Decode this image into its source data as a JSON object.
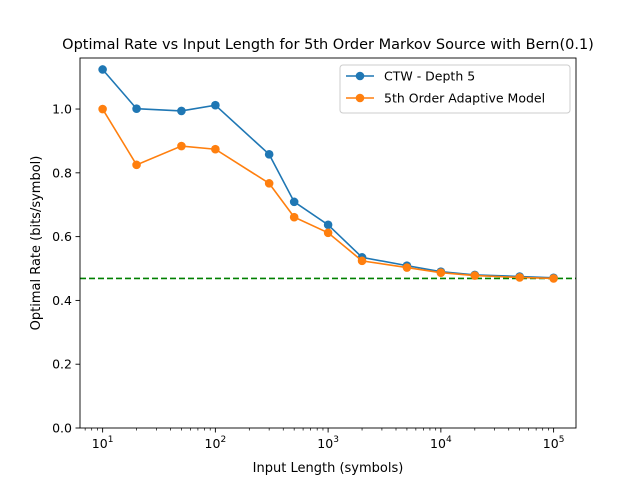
{
  "chart_data": {
    "type": "line",
    "title": "Optimal Rate vs Input Length for 5th Order Markov Source with Bern(0.1)",
    "xlabel": "Input Length (symbols)",
    "ylabel": "Optimal Rate (bits/symbol)",
    "xscale": "log",
    "xlim": [
      6.3,
      158000
    ],
    "ylim": [
      0.0,
      1.16
    ],
    "x_ticks": [
      {
        "value": 10,
        "base": "10",
        "exp": "1"
      },
      {
        "value": 100,
        "base": "10",
        "exp": "2"
      },
      {
        "value": 1000,
        "base": "10",
        "exp": "3"
      },
      {
        "value": 10000,
        "base": "10",
        "exp": "4"
      },
      {
        "value": 100000,
        "base": "10",
        "exp": "5"
      }
    ],
    "y_ticks": [
      "0.0",
      "0.2",
      "0.4",
      "0.6",
      "0.8",
      "1.0"
    ],
    "grid": false,
    "legend": "top-right",
    "series": [
      {
        "name": "CTW - Depth 5",
        "color": "#1f77b4",
        "x": [
          10,
          20,
          50,
          100,
          300,
          500,
          1000,
          2000,
          5000,
          10000,
          20000,
          50000,
          100000
        ],
        "y": [
          1.124,
          1.001,
          0.994,
          1.012,
          0.858,
          0.709,
          0.637,
          0.535,
          0.509,
          0.49,
          0.48,
          0.475,
          0.471
        ]
      },
      {
        "name": "5th Order Adaptive Model",
        "color": "#ff7f0e",
        "x": [
          10,
          20,
          50,
          100,
          300,
          500,
          1000,
          2000,
          5000,
          10000,
          20000,
          50000,
          100000
        ],
        "y": [
          1.0,
          0.825,
          0.884,
          0.874,
          0.767,
          0.661,
          0.612,
          0.524,
          0.503,
          0.487,
          0.478,
          0.472,
          0.469
        ]
      }
    ],
    "reference_line": {
      "y": 0.469,
      "color": "#008000",
      "style": "dashed"
    }
  }
}
